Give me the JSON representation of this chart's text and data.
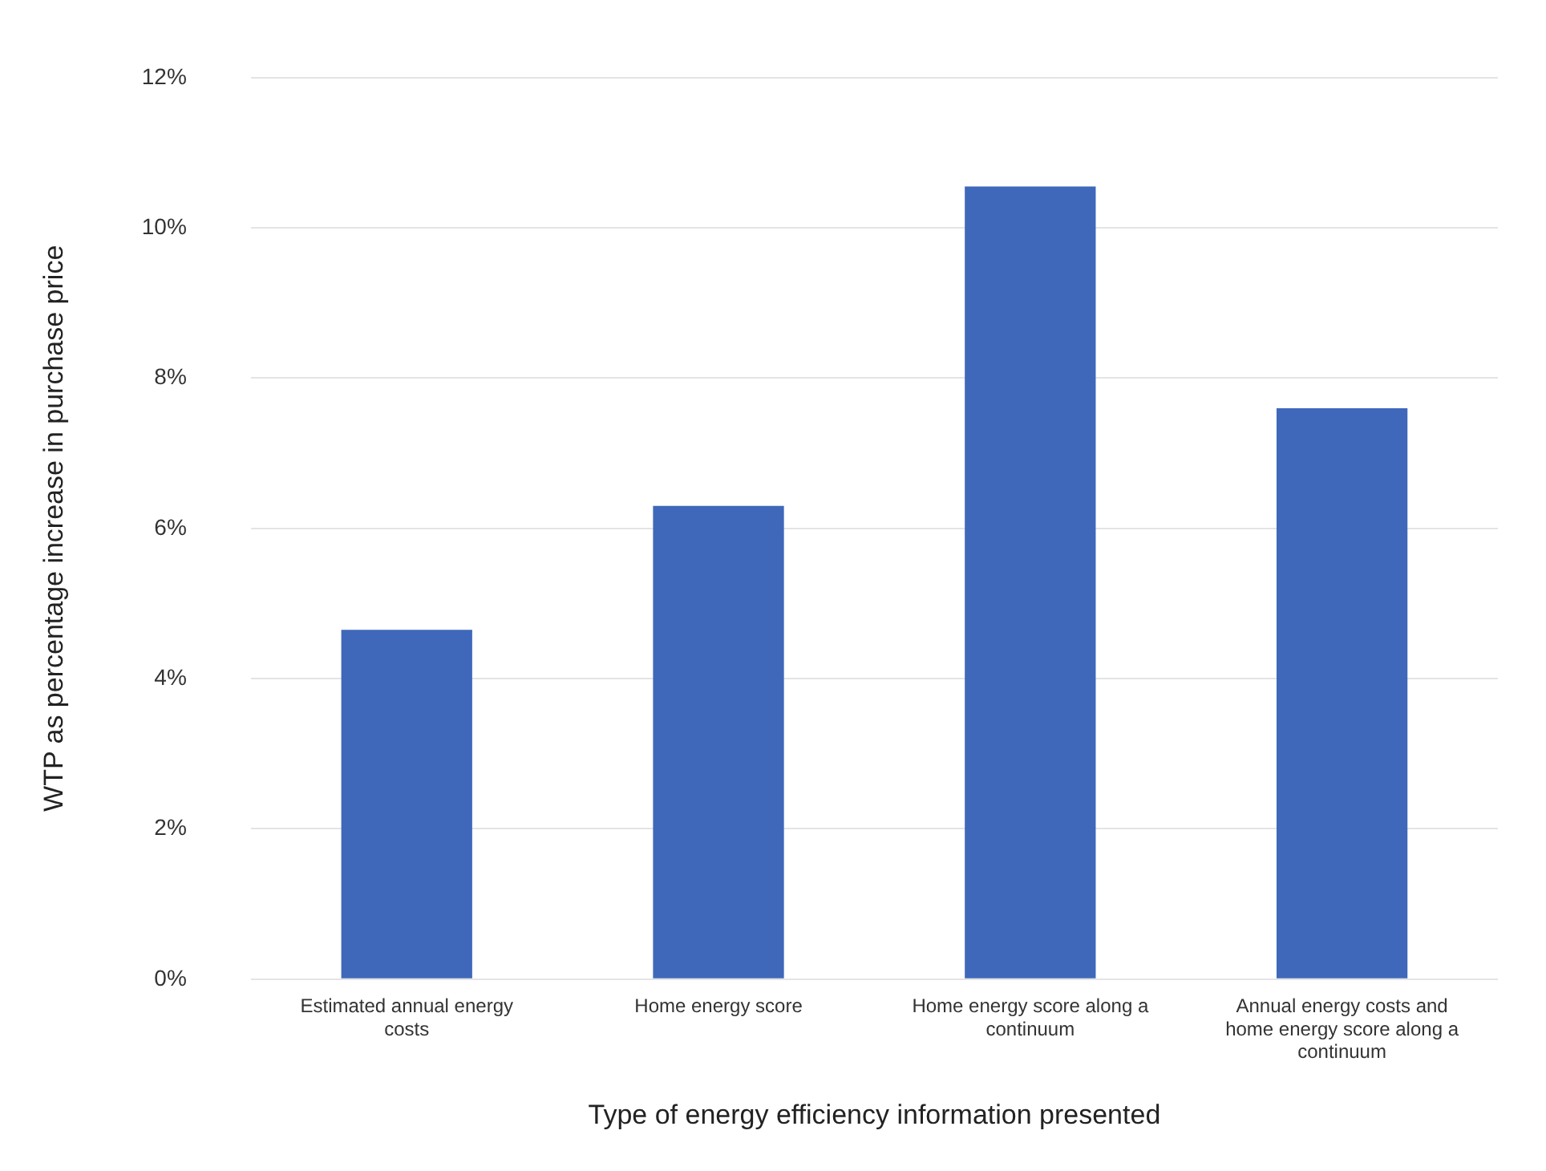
{
  "chart_data": {
    "type": "bar",
    "xlabel": "Type of energy efficiency information presented",
    "ylabel": "WTP as percentage increase in purchase price",
    "categories": [
      "Estimated annual energy costs",
      "Home energy score",
      "Home energy score along a continuum",
      "Annual energy costs and home energy score along a continuum"
    ],
    "values": [
      4.65,
      6.3,
      10.55,
      7.6
    ],
    "color": "#3f68ba",
    "ylim": [
      0,
      12
    ],
    "yticks": [
      {
        "value": 0,
        "label": "0%"
      },
      {
        "value": 2,
        "label": "2%"
      },
      {
        "value": 4,
        "label": "4%"
      },
      {
        "value": 6,
        "label": "6%"
      },
      {
        "value": 8,
        "label": "8%"
      },
      {
        "value": 10,
        "label": "10%"
      },
      {
        "value": 12,
        "label": "12%"
      }
    ],
    "grid": "y",
    "legend": false
  }
}
